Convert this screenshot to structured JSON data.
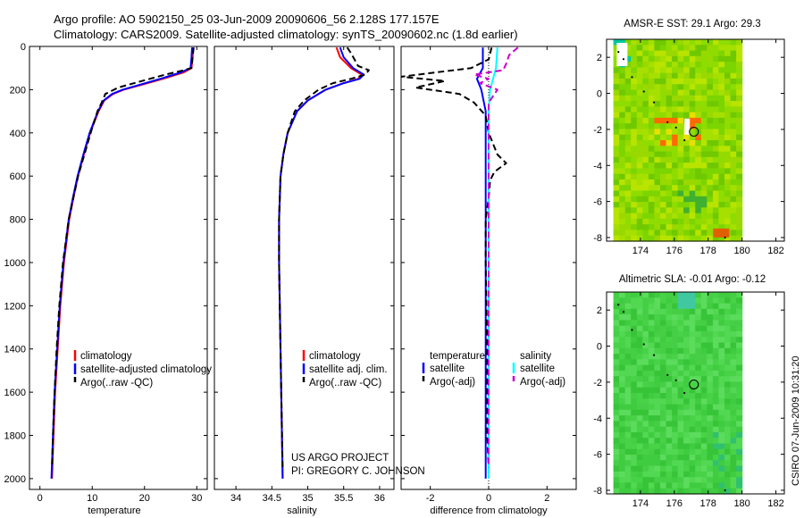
{
  "figure": {
    "title_line1": "Argo profile: AO 5902150_25 03-Jun-2009 20090606_56 2.128S 177.157E",
    "title_line2": "Climatology: CARS2009. Satellite-adjusted climatology: synTS_20090602.nc (1.8d earlier)",
    "credit_line1": "US ARGO PROJECT",
    "credit_line2": "PI: GREGORY C. JOHNSON",
    "side_stamp": "CSIRO 07-Jun-2009 10:31:20"
  },
  "colors": {
    "climatology": "#ff0000",
    "satellite": "#0000ff",
    "argo": "#000000",
    "salinity_satellite": "#00ffff",
    "salinity_argo": "#cc00cc"
  },
  "chart_data": [
    {
      "id": "temperature",
      "type": "line",
      "xlabel": "temperature",
      "ylabel": "",
      "xlim": [
        -2,
        32
      ],
      "ylim": [
        2050,
        0
      ],
      "xticks": [
        "0",
        "10",
        "20",
        "30"
      ],
      "xtick_values": [
        0,
        10,
        20,
        30
      ],
      "yticks": [
        "0",
        "200",
        "400",
        "600",
        "800",
        "1000",
        "1200",
        "1400",
        "1600",
        "1800",
        "2000"
      ],
      "ytick_values": [
        0,
        200,
        400,
        600,
        800,
        1000,
        1200,
        1400,
        1600,
        1800,
        2000
      ],
      "legend": [
        "climatology",
        "satellite-adjusted climatology",
        "Argo(..raw -QC)"
      ],
      "series": [
        {
          "name": "climatology",
          "style": "solid",
          "depth": [
            5,
            50,
            100,
            120,
            150,
            180,
            200,
            220,
            250,
            300,
            400,
            500,
            600,
            700,
            800,
            1000,
            1200,
            1400,
            1600,
            1800,
            2000
          ],
          "values": [
            29.3,
            29.2,
            29.0,
            27.5,
            23.5,
            19.0,
            16.0,
            14.0,
            12.3,
            11.2,
            9.6,
            8.4,
            7.3,
            6.4,
            5.6,
            4.6,
            3.9,
            3.4,
            2.9,
            2.6,
            2.3
          ]
        },
        {
          "name": "satellite-adjusted climatology",
          "style": "solid",
          "depth": [
            5,
            50,
            100,
            120,
            150,
            180,
            200,
            220,
            250,
            300,
            400,
            500,
            600,
            700,
            800,
            1000,
            1200,
            1400,
            1600,
            1800,
            2000
          ],
          "values": [
            29.1,
            29.0,
            28.8,
            27.0,
            23.0,
            18.7,
            15.8,
            13.8,
            12.2,
            11.1,
            9.5,
            8.3,
            7.2,
            6.3,
            5.5,
            4.5,
            3.8,
            3.3,
            2.8,
            2.5,
            2.2
          ]
        },
        {
          "name": "Argo(..raw -QC)",
          "style": "dashed",
          "depth": [
            5,
            50,
            100,
            110,
            130,
            160,
            190,
            220,
            260,
            300,
            400,
            500,
            600,
            800,
            1000,
            1200,
            1400,
            1600,
            1800,
            1950
          ],
          "values": [
            29.4,
            29.2,
            29.0,
            27.5,
            24.0,
            19.5,
            15.0,
            12.5,
            11.8,
            11.0,
            9.7,
            8.5,
            7.3,
            5.5,
            4.4,
            3.7,
            3.2,
            2.8,
            2.5,
            2.3
          ]
        }
      ]
    },
    {
      "id": "salinity",
      "type": "line",
      "xlabel": "salinity",
      "xlim": [
        33.7,
        36.2
      ],
      "ylim": [
        2050,
        0
      ],
      "xticks": [
        "34",
        "34.5",
        "35",
        "35.5",
        "36"
      ],
      "xtick_values": [
        34,
        34.5,
        35,
        35.5,
        36
      ],
      "legend": [
        "climatology",
        "satellite adj. clim.",
        "Argo(..raw -QC)"
      ],
      "series": [
        {
          "name": "climatology",
          "style": "solid",
          "depth": [
            5,
            50,
            100,
            130,
            150,
            170,
            200,
            250,
            300,
            400,
            500,
            600,
            800,
            1000,
            1400,
            2000
          ],
          "values": [
            35.4,
            35.45,
            35.6,
            35.75,
            35.7,
            35.5,
            35.25,
            35.0,
            34.85,
            34.72,
            34.66,
            34.62,
            34.6,
            34.6,
            34.62,
            34.65
          ]
        },
        {
          "name": "satellite adj. clim.",
          "style": "solid",
          "depth": [
            5,
            50,
            100,
            130,
            150,
            170,
            200,
            250,
            300,
            400,
            500,
            600,
            800,
            1000,
            1400,
            2000
          ],
          "values": [
            35.45,
            35.5,
            35.63,
            35.78,
            35.72,
            35.5,
            35.25,
            35.0,
            34.85,
            34.72,
            34.66,
            34.62,
            34.6,
            34.6,
            34.62,
            34.65
          ]
        },
        {
          "name": "Argo(..raw -QC)",
          "style": "dashed",
          "depth": [
            5,
            30,
            60,
            90,
            110,
            130,
            150,
            170,
            200,
            250,
            300,
            400,
            500,
            600,
            800,
            1000,
            1400,
            1950
          ],
          "values": [
            35.55,
            35.6,
            35.65,
            35.7,
            35.85,
            35.8,
            35.6,
            35.35,
            35.15,
            34.95,
            34.82,
            34.72,
            34.66,
            34.62,
            34.6,
            34.6,
            34.62,
            34.65
          ]
        }
      ]
    },
    {
      "id": "difference",
      "type": "line",
      "xlabel": "difference from climatology",
      "xlim": [
        -3,
        3
      ],
      "ylim": [
        2050,
        0
      ],
      "xticks": [
        "-2",
        "0",
        "2"
      ],
      "xtick_values": [
        -2,
        0,
        2
      ],
      "legend_temperature_heading": "temperature",
      "legend_salinity_heading": "salinity",
      "legend": [
        "satellite",
        "Argo(-adj)",
        "satellite",
        "Argo(-adj)"
      ],
      "series": [
        {
          "name": "temperature satellite",
          "style": "solid",
          "depth": [
            5,
            100,
            150,
            200,
            300,
            500,
            700,
            1000,
            1500,
            2000
          ],
          "values": [
            -0.2,
            -0.2,
            -0.4,
            -0.25,
            -0.1,
            -0.1,
            -0.1,
            -0.1,
            -0.1,
            -0.1
          ]
        },
        {
          "name": "temperature Argo(-adj)",
          "style": "dashed",
          "depth": [
            5,
            60,
            100,
            140,
            160,
            190,
            220,
            260,
            320,
            400,
            500,
            540,
            580,
            620,
            700,
            800,
            1000,
            1400,
            1800,
            1950
          ],
          "values": [
            0.1,
            0.0,
            -0.6,
            -3.0,
            -1.5,
            -2.5,
            -1.0,
            -0.5,
            -0.1,
            0.0,
            0.3,
            0.6,
            0.2,
            0.05,
            0.0,
            -0.1,
            -0.1,
            -0.05,
            -0.05,
            0.0
          ]
        },
        {
          "name": "salinity satellite",
          "style": "solid",
          "depth": [
            5,
            100,
            150,
            200,
            300,
            500,
            1000,
            2000
          ],
          "values": [
            0.3,
            0.25,
            0.15,
            0.05,
            0.0,
            0.0,
            0.0,
            0.0
          ]
        },
        {
          "name": "salinity Argo(-adj)",
          "style": "dashed",
          "depth": [
            5,
            40,
            80,
            110,
            130,
            150,
            170,
            200,
            260,
            300,
            400,
            600,
            1000,
            1950
          ],
          "values": [
            1.0,
            0.7,
            0.6,
            0.5,
            -0.5,
            0.0,
            -0.3,
            0.3,
            0.0,
            0.0,
            0.0,
            0.0,
            0.0,
            0.0
          ]
        }
      ]
    },
    {
      "id": "sst_map",
      "type": "heatmap",
      "title": "AMSR-E SST: 29.1 Argo: 29.3",
      "xlim": [
        172,
        182.5
      ],
      "ylim": [
        -8.2,
        3.0
      ],
      "xticks": [
        "174",
        "176",
        "178",
        "180",
        "182"
      ],
      "xtick_values": [
        174,
        176,
        178,
        180,
        182
      ],
      "yticks": [
        "2",
        "0",
        "-2",
        "-4",
        "-6",
        "-8"
      ],
      "ytick_values": [
        2,
        0,
        -2,
        -4,
        -6,
        -8
      ],
      "data_lon_range": [
        172.4,
        180
      ],
      "marker": {
        "lon": 177.157,
        "lat": -2.128
      }
    },
    {
      "id": "sla_map",
      "type": "heatmap",
      "title": "Altimetric SLA: -0.01 Argo: -0.12",
      "xlim": [
        172,
        182.5
      ],
      "ylim": [
        -8.2,
        3.0
      ],
      "xticks": [
        "174",
        "176",
        "178",
        "180",
        "182"
      ],
      "xtick_values": [
        174,
        176,
        178,
        180,
        182
      ],
      "yticks": [
        "2",
        "0",
        "-2",
        "-4",
        "-6",
        "-8"
      ],
      "ytick_values": [
        2,
        0,
        -2,
        -4,
        -6,
        -8
      ],
      "data_lon_range": [
        172.4,
        180
      ],
      "marker": {
        "lon": 177.157,
        "lat": -2.128
      }
    }
  ]
}
